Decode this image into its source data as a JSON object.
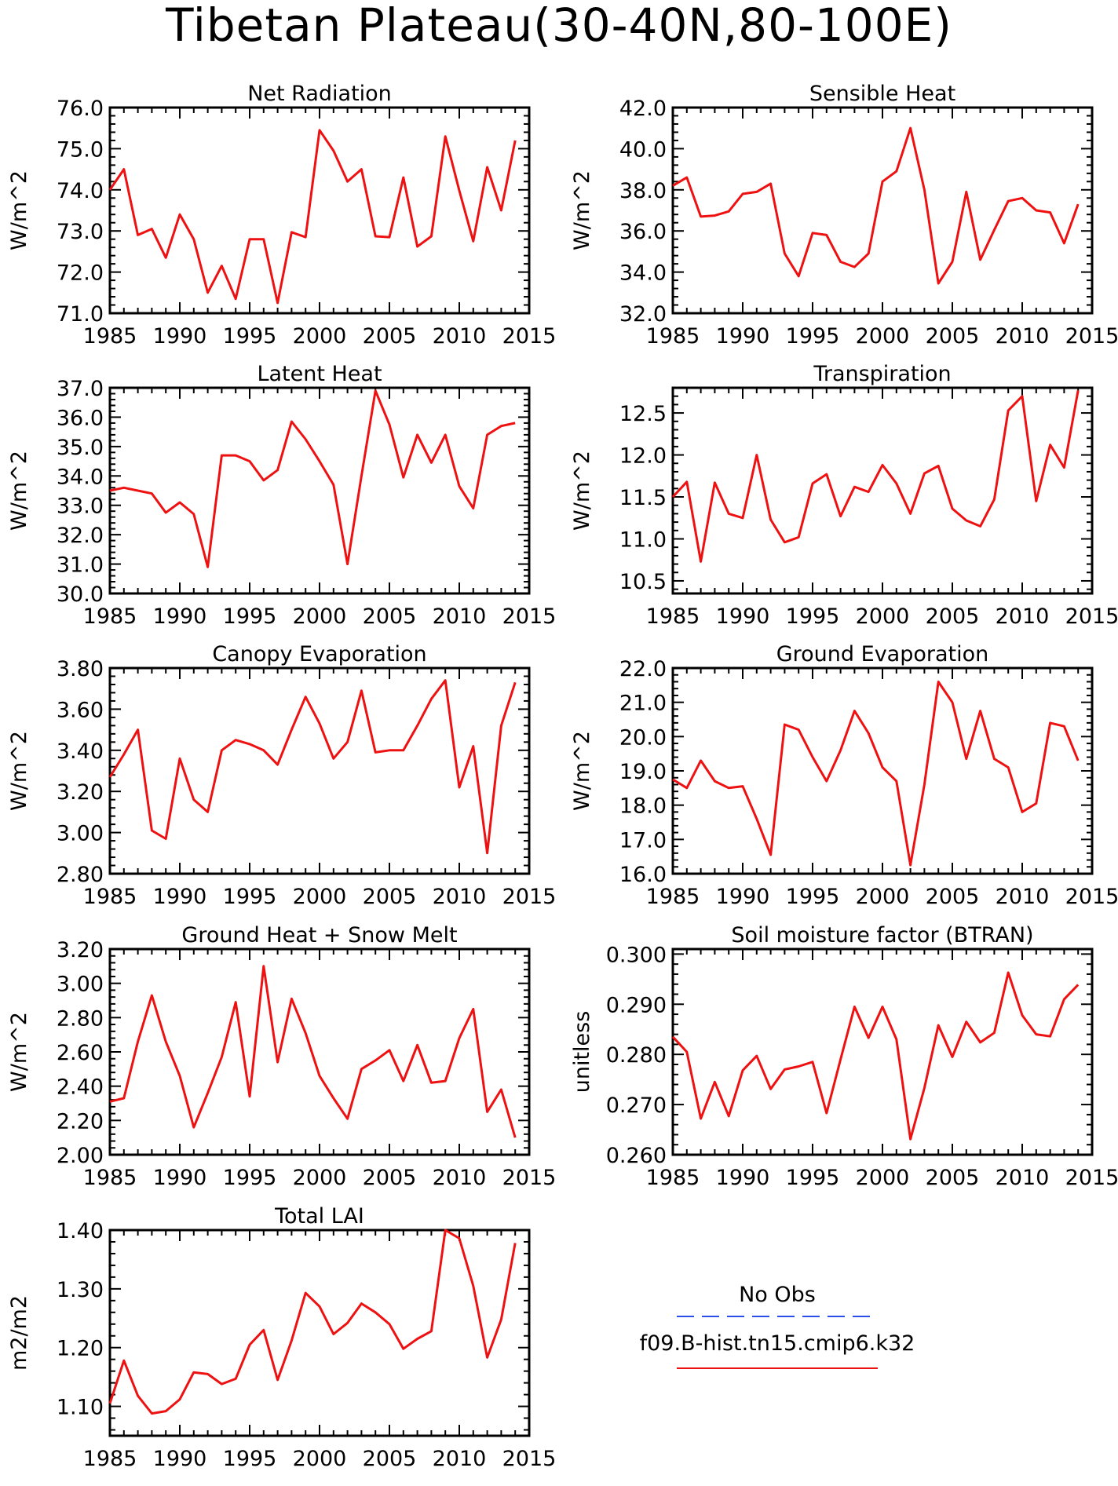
{
  "figure": {
    "title": "Tibetan Plateau(30-40N,80-100E)"
  },
  "legend": {
    "items": [
      {
        "label": "No Obs",
        "color": "#2a4fe8",
        "dash": true
      },
      {
        "label": "f09.B-hist.tn15.cmip6.k32",
        "color": "#ee1111",
        "dash": false
      }
    ]
  },
  "colors": {
    "series": "#ee1111",
    "obs": "#2a4fe8"
  },
  "chart_data": [
    {
      "type": "line",
      "title": "Net Radiation",
      "ylabel": "W/m^2",
      "xlim": [
        1985,
        2015
      ],
      "ylim": [
        71.0,
        76.0
      ],
      "yticks": [
        "71.0",
        "72.0",
        "73.0",
        "74.0",
        "75.0",
        "76.0"
      ],
      "xticks": [
        "1985",
        "1990",
        "1995",
        "2000",
        "2005",
        "2010",
        "2015"
      ],
      "x": [
        1985,
        1986,
        1987,
        1988,
        1989,
        1990,
        1991,
        1992,
        1993,
        1994,
        1995,
        1996,
        1997,
        1998,
        1999,
        2000,
        2001,
        2002,
        2003,
        2004,
        2005,
        2006,
        2007,
        2008,
        2009,
        2010,
        2011,
        2012,
        2013,
        2014
      ],
      "values": [
        74.0,
        74.5,
        72.9,
        73.05,
        72.35,
        73.4,
        72.8,
        71.5,
        72.15,
        71.35,
        72.8,
        72.8,
        71.25,
        72.97,
        72.85,
        75.45,
        74.95,
        74.2,
        74.5,
        72.87,
        72.85,
        74.3,
        72.62,
        72.87,
        75.3,
        73.98,
        72.75,
        74.55,
        73.5,
        75.2
      ]
    },
    {
      "type": "line",
      "title": "Sensible Heat",
      "ylabel": "W/m^2",
      "xlim": [
        1985,
        2015
      ],
      "ylim": [
        32.0,
        42.0
      ],
      "yticks": [
        "32.0",
        "34.0",
        "36.0",
        "38.0",
        "40.0",
        "42.0"
      ],
      "xticks": [
        "1985",
        "1990",
        "1995",
        "2000",
        "2005",
        "2010",
        "2015"
      ],
      "x": [
        1985,
        1986,
        1987,
        1988,
        1989,
        1990,
        1991,
        1992,
        1993,
        1994,
        1995,
        1996,
        1997,
        1998,
        1999,
        2000,
        2001,
        2002,
        2003,
        2004,
        2005,
        2006,
        2007,
        2008,
        2009,
        2010,
        2011,
        2012,
        2013,
        2014
      ],
      "values": [
        38.2,
        38.6,
        36.7,
        36.75,
        36.95,
        37.8,
        37.9,
        38.3,
        34.9,
        33.8,
        35.9,
        35.8,
        34.5,
        34.25,
        34.9,
        38.4,
        38.9,
        41.0,
        38.0,
        33.45,
        34.5,
        37.9,
        34.6,
        36.05,
        37.45,
        37.6,
        37.0,
        36.9,
        35.4,
        37.3
      ]
    },
    {
      "type": "line",
      "title": "Latent Heat",
      "ylabel": "W/m^2",
      "xlim": [
        1985,
        2015
      ],
      "ylim": [
        30.0,
        37.0
      ],
      "yticks": [
        "30.0",
        "31.0",
        "32.0",
        "33.0",
        "34.0",
        "35.0",
        "36.0",
        "37.0"
      ],
      "xticks": [
        "1985",
        "1990",
        "1995",
        "2000",
        "2005",
        "2010",
        "2015"
      ],
      "x": [
        1985,
        1986,
        1987,
        1988,
        1989,
        1990,
        1991,
        1992,
        1993,
        1994,
        1995,
        1996,
        1997,
        1998,
        1999,
        2000,
        2001,
        2002,
        2003,
        2004,
        2005,
        2006,
        2007,
        2008,
        2009,
        2010,
        2011,
        2012,
        2013,
        2014
      ],
      "values": [
        33.5,
        33.6,
        33.5,
        33.4,
        32.75,
        33.1,
        32.7,
        30.9,
        34.7,
        34.7,
        34.5,
        33.85,
        34.2,
        35.85,
        35.25,
        34.5,
        33.7,
        31.0,
        34.0,
        36.9,
        35.75,
        33.95,
        35.4,
        34.45,
        35.4,
        33.65,
        32.9,
        35.4,
        35.7,
        35.8
      ]
    },
    {
      "type": "line",
      "title": "Transpiration",
      "ylabel": "W/m^2",
      "xlim": [
        1985,
        2015
      ],
      "ylim": [
        10.35,
        12.8
      ],
      "yticks": [
        "10.5",
        "11.0",
        "11.5",
        "12.0",
        "12.5"
      ],
      "ytick_values": [
        10.5,
        11.0,
        11.5,
        12.0,
        12.5
      ],
      "xticks": [
        "1985",
        "1990",
        "1995",
        "2000",
        "2005",
        "2010",
        "2015"
      ],
      "x": [
        1985,
        1986,
        1987,
        1988,
        1989,
        1990,
        1991,
        1992,
        1993,
        1994,
        1995,
        1996,
        1997,
        1998,
        1999,
        2000,
        2001,
        2002,
        2003,
        2004,
        2005,
        2006,
        2007,
        2008,
        2009,
        2010,
        2011,
        2012,
        2013,
        2014
      ],
      "values": [
        11.5,
        11.68,
        10.73,
        11.67,
        11.3,
        11.25,
        12.0,
        11.23,
        10.96,
        11.02,
        11.66,
        11.77,
        11.27,
        11.62,
        11.56,
        11.88,
        11.66,
        11.3,
        11.78,
        11.87,
        11.36,
        11.22,
        11.15,
        11.47,
        12.53,
        12.7,
        11.45,
        12.12,
        11.85,
        12.77
      ]
    },
    {
      "type": "line",
      "title": "Canopy Evaporation",
      "ylabel": "W/m^2",
      "xlim": [
        1985,
        2015
      ],
      "ylim": [
        2.8,
        3.8
      ],
      "yticks": [
        "2.80",
        "3.00",
        "3.20",
        "3.40",
        "3.60",
        "3.80"
      ],
      "xticks": [
        "1985",
        "1990",
        "1995",
        "2000",
        "2005",
        "2010",
        "2015"
      ],
      "x": [
        1985,
        1986,
        1987,
        1988,
        1989,
        1990,
        1991,
        1992,
        1993,
        1994,
        1995,
        1996,
        1997,
        1998,
        1999,
        2000,
        2001,
        2002,
        2003,
        2004,
        2005,
        2006,
        2007,
        2008,
        2009,
        2010,
        2011,
        2012,
        2013,
        2014
      ],
      "values": [
        3.27,
        3.38,
        3.5,
        3.01,
        2.97,
        3.36,
        3.16,
        3.1,
        3.4,
        3.45,
        3.43,
        3.4,
        3.33,
        3.5,
        3.66,
        3.53,
        3.36,
        3.44,
        3.69,
        3.39,
        3.4,
        3.4,
        3.52,
        3.65,
        3.74,
        3.22,
        3.42,
        2.9,
        3.52,
        3.73
      ]
    },
    {
      "type": "line",
      "title": "Ground Evaporation",
      "ylabel": "W/m^2",
      "xlim": [
        1985,
        2015
      ],
      "ylim": [
        16.0,
        22.0
      ],
      "yticks": [
        "16.0",
        "17.0",
        "18.0",
        "19.0",
        "20.0",
        "21.0",
        "22.0"
      ],
      "xticks": [
        "1985",
        "1990",
        "1995",
        "2000",
        "2005",
        "2010",
        "2015"
      ],
      "x": [
        1985,
        1986,
        1987,
        1988,
        1989,
        1990,
        1991,
        1992,
        1993,
        1994,
        1995,
        1996,
        1997,
        1998,
        1999,
        2000,
        2001,
        2002,
        2003,
        2004,
        2005,
        2006,
        2007,
        2008,
        2009,
        2010,
        2011,
        2012,
        2013,
        2014
      ],
      "values": [
        18.75,
        18.5,
        19.3,
        18.7,
        18.5,
        18.55,
        17.6,
        16.55,
        20.35,
        20.2,
        19.4,
        18.7,
        19.6,
        20.75,
        20.1,
        19.1,
        18.7,
        16.25,
        18.6,
        21.6,
        21.0,
        19.35,
        20.75,
        19.35,
        19.1,
        17.8,
        18.05,
        20.4,
        20.3,
        19.3
      ]
    },
    {
      "type": "line",
      "title": "Ground Heat + Snow Melt",
      "ylabel": "W/m^2",
      "xlim": [
        1985,
        2015
      ],
      "ylim": [
        2.0,
        3.2
      ],
      "yticks": [
        "2.00",
        "2.20",
        "2.40",
        "2.60",
        "2.80",
        "3.00",
        "3.20"
      ],
      "xticks": [
        "1985",
        "1990",
        "1995",
        "2000",
        "2005",
        "2010",
        "2015"
      ],
      "x": [
        1985,
        1986,
        1987,
        1988,
        1989,
        1990,
        1991,
        1992,
        1993,
        1994,
        1995,
        1996,
        1997,
        1998,
        1999,
        2000,
        2001,
        2002,
        2003,
        2004,
        2005,
        2006,
        2007,
        2008,
        2009,
        2010,
        2011,
        2012,
        2013,
        2014
      ],
      "values": [
        2.31,
        2.33,
        2.66,
        2.93,
        2.66,
        2.46,
        2.16,
        2.36,
        2.57,
        2.89,
        2.34,
        3.1,
        2.54,
        2.91,
        2.71,
        2.46,
        2.33,
        2.21,
        2.5,
        2.55,
        2.61,
        2.43,
        2.64,
        2.42,
        2.43,
        2.68,
        2.85,
        2.25,
        2.38,
        2.1
      ]
    },
    {
      "type": "line",
      "title": "Soil moisture factor (BTRAN)",
      "ylabel": "unitless",
      "xlim": [
        1985,
        2015
      ],
      "ylim": [
        0.26,
        0.301
      ],
      "yticks": [
        "0.260",
        "0.270",
        "0.280",
        "0.290",
        "0.300"
      ],
      "ytick_values": [
        0.26,
        0.27,
        0.28,
        0.29,
        0.3
      ],
      "xticks": [
        "1985",
        "1990",
        "1995",
        "2000",
        "2005",
        "2010",
        "2015"
      ],
      "x": [
        1985,
        1986,
        1987,
        1988,
        1989,
        1990,
        1991,
        1992,
        1993,
        1994,
        1995,
        1996,
        1997,
        1998,
        1999,
        2000,
        2001,
        2002,
        2003,
        2004,
        2005,
        2006,
        2007,
        2008,
        2009,
        2010,
        2011,
        2012,
        2013,
        2014
      ],
      "values": [
        0.2835,
        0.2805,
        0.2672,
        0.2745,
        0.2677,
        0.2768,
        0.2797,
        0.2731,
        0.277,
        0.2776,
        0.2785,
        0.2683,
        0.279,
        0.2895,
        0.2833,
        0.2895,
        0.283,
        0.2631,
        0.2733,
        0.2858,
        0.2795,
        0.2865,
        0.2824,
        0.2843,
        0.2963,
        0.2878,
        0.284,
        0.2836,
        0.291,
        0.2939
      ]
    },
    {
      "type": "line",
      "title": "Total LAI",
      "ylabel": "m2/m2",
      "xlim": [
        1985,
        2015
      ],
      "ylim": [
        1.05,
        1.4
      ],
      "yticks": [
        "1.10",
        "1.20",
        "1.30",
        "1.40"
      ],
      "ytick_values": [
        1.1,
        1.2,
        1.3,
        1.4
      ],
      "xticks": [
        "1985",
        "1990",
        "1995",
        "2000",
        "2005",
        "2010",
        "2015"
      ],
      "x": [
        1985,
        1986,
        1987,
        1988,
        1989,
        1990,
        1991,
        1992,
        1993,
        1994,
        1995,
        1996,
        1997,
        1998,
        1999,
        2000,
        2001,
        2002,
        2003,
        2004,
        2005,
        2006,
        2007,
        2008,
        2009,
        2010,
        2011,
        2012,
        2013,
        2014
      ],
      "values": [
        1.105,
        1.178,
        1.118,
        1.088,
        1.092,
        1.112,
        1.158,
        1.155,
        1.138,
        1.147,
        1.205,
        1.23,
        1.145,
        1.212,
        1.293,
        1.27,
        1.223,
        1.242,
        1.275,
        1.26,
        1.24,
        1.198,
        1.215,
        1.228,
        1.4,
        1.386,
        1.305,
        1.183,
        1.248,
        1.378
      ]
    }
  ]
}
